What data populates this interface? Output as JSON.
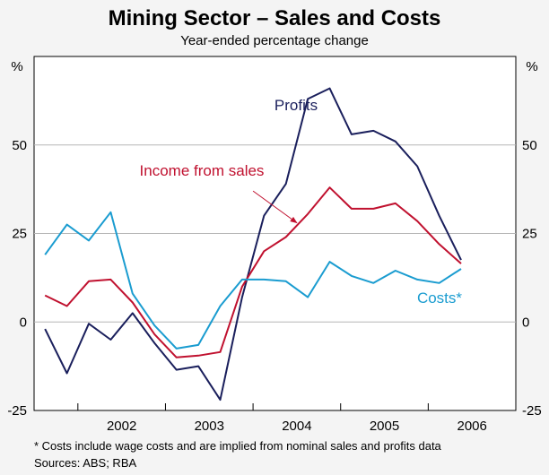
{
  "chart_data": {
    "type": "line",
    "title": "Mining Sector – Sales and Costs",
    "subtitle": "Year-ended percentage change",
    "y_unit_left": "%",
    "y_unit_right": "%",
    "ylim": [
      -25,
      75
    ],
    "yticks": [
      -25,
      0,
      25,
      50
    ],
    "ytick_labels": [
      "-25",
      "0",
      "25",
      "50"
    ],
    "x_start": 2001.5,
    "x_end": 2007.0,
    "year_labels": [
      "2002",
      "2003",
      "2004",
      "2005",
      "2006"
    ],
    "series": [
      {
        "name": "Profits",
        "label": "Profits",
        "color": "#1a1f5c",
        "x": [
          2001.625,
          2001.875,
          2002.125,
          2002.375,
          2002.625,
          2002.875,
          2003.125,
          2003.375,
          2003.625,
          2003.875,
          2004.125,
          2004.375,
          2004.625,
          2004.875,
          2005.125,
          2005.375,
          2005.625,
          2005.875,
          2006.125,
          2006.375
        ],
        "values": [
          -2,
          -14.5,
          -0.5,
          -5,
          2.5,
          -6,
          -13.5,
          -12.5,
          -22,
          7,
          30,
          39,
          63,
          66,
          53,
          54,
          51,
          44,
          30,
          17.5
        ]
      },
      {
        "name": "Income from sales",
        "label": "Income from sales",
        "color": "#c0112f",
        "x": [
          2001.625,
          2001.875,
          2002.125,
          2002.375,
          2002.625,
          2002.875,
          2003.125,
          2003.375,
          2003.625,
          2003.875,
          2004.125,
          2004.375,
          2004.625,
          2004.875,
          2005.125,
          2005.375,
          2005.625,
          2005.875,
          2006.125,
          2006.375
        ],
        "values": [
          7.5,
          4.5,
          11.5,
          12,
          5.5,
          -3.5,
          -10,
          -9.5,
          -8.5,
          10,
          20,
          24,
          30.5,
          38,
          32,
          32,
          33.5,
          28.5,
          22,
          16.5
        ]
      },
      {
        "name": "Costs*",
        "label": "Costs*",
        "color": "#1a9cd0",
        "x": [
          2001.625,
          2001.875,
          2002.125,
          2002.375,
          2002.625,
          2002.875,
          2003.125,
          2003.375,
          2003.625,
          2003.875,
          2004.125,
          2004.375,
          2004.625,
          2004.875,
          2005.125,
          2005.375,
          2005.625,
          2005.875,
          2006.125,
          2006.375
        ],
        "values": [
          19,
          27.5,
          23,
          31,
          8,
          -1,
          -7.5,
          -6.5,
          4.5,
          12,
          12,
          11.5,
          7,
          17,
          13,
          11,
          14.5,
          12,
          11,
          15
        ]
      }
    ],
    "annotations": {
      "income_arrow_from": [
        2004.0,
        37
      ],
      "income_arrow_to": [
        2004.5,
        28
      ]
    },
    "grid": true
  },
  "footnote": "*   Costs include wage costs and are implied from nominal sales and profits data",
  "sources": "Sources: ABS; RBA"
}
